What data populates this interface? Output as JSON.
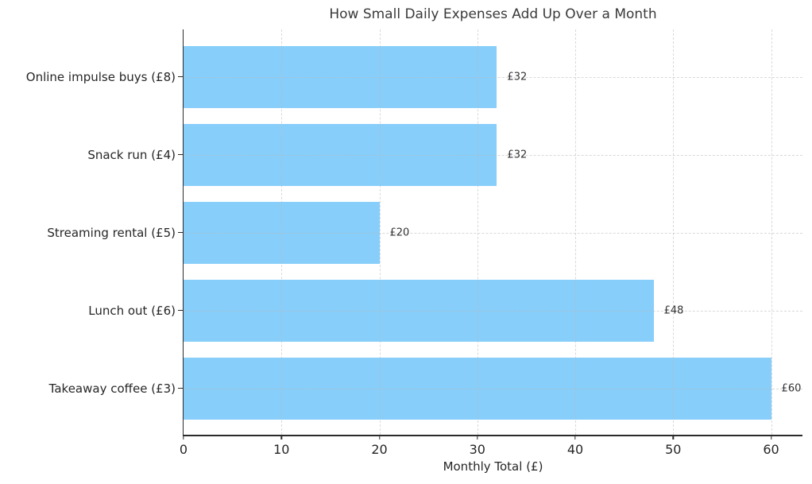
{
  "chart_data": {
    "type": "bar",
    "orientation": "horizontal",
    "title": "How Small Daily Expenses Add Up Over a Month",
    "xlabel": "Monthly Total (£)",
    "ylabel": "",
    "categories": [
      "Online impulse buys (£8)",
      "Snack run (£4)",
      "Streaming rental (£5)",
      "Lunch out (£6)",
      "Takeaway coffee (£3)"
    ],
    "values": [
      32,
      32,
      20,
      48,
      60
    ],
    "bar_value_labels": [
      "£32",
      "£32",
      "£20",
      "£48",
      "£60"
    ],
    "x_ticks": [
      0,
      10,
      20,
      30,
      40,
      50,
      60
    ],
    "xlim": [
      0,
      63.2
    ],
    "grid": true,
    "grid_style": "dashed",
    "legend": "none",
    "colors": {
      "bar": "#87CEFA",
      "grid": "#b9b9b9",
      "axis": "#2b2b2b",
      "text": "#262626",
      "background": "#ffffff"
    }
  }
}
